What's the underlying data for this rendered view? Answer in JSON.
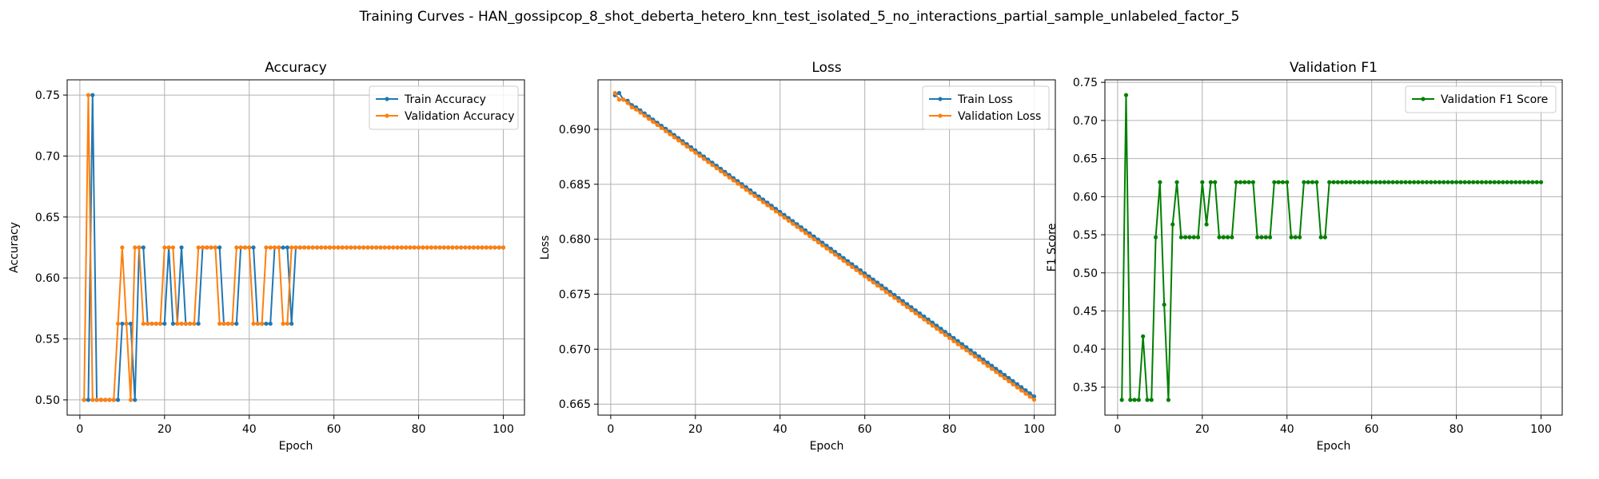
{
  "figure_title": "Training Curves - HAN_gossipcop_8_shot_deberta_hetero_knn_test_isolated_5_no_interactions_partial_sample_unlabeled_factor_5",
  "chart_data": [
    {
      "type": "line",
      "title": "Accuracy",
      "xlabel": "Epoch",
      "ylabel": "Accuracy",
      "xlim": [
        -3,
        105
      ],
      "ylim": [
        0.4875,
        0.7625
      ],
      "xticks": [
        0,
        20,
        40,
        60,
        80,
        100
      ],
      "yticks": [
        0.5,
        0.55,
        0.6,
        0.65,
        0.7,
        0.75
      ],
      "ytick_labels": [
        "0.50",
        "0.55",
        "0.60",
        "0.65",
        "0.70",
        "0.75"
      ],
      "grid": true,
      "legend_position": "top-right",
      "series": [
        {
          "name": "Train Accuracy",
          "color": "#1f77b4",
          "x": [
            1,
            2,
            3,
            4,
            5,
            6,
            7,
            8,
            9,
            10,
            11,
            12,
            13,
            14,
            15,
            16,
            17,
            18,
            19,
            20,
            21,
            22,
            23,
            24,
            25,
            26,
            27,
            28,
            29,
            30,
            31,
            32,
            33,
            34,
            35,
            36,
            37,
            38,
            39,
            40,
            41,
            42,
            43,
            44,
            45,
            46,
            47,
            48,
            49,
            50
          ],
          "values": [
            0.5,
            0.5,
            0.75,
            0.5,
            0.5,
            0.5,
            0.5,
            0.5,
            0.5,
            0.5625,
            0.5625,
            0.5625,
            0.5,
            0.625,
            0.625,
            0.5625,
            0.5625,
            0.5625,
            0.5625,
            0.5625,
            0.625,
            0.5625,
            0.5625,
            0.625,
            0.5625,
            0.5625,
            0.5625,
            0.5625,
            0.625,
            0.625,
            0.625,
            0.625,
            0.625,
            0.5625,
            0.5625,
            0.5625,
            0.5625,
            0.625,
            0.625,
            0.625,
            0.625,
            0.5625,
            0.5625,
            0.5625,
            0.5625,
            0.625,
            0.625,
            0.625,
            0.625,
            0.5625
          ],
          "tail_from": 51,
          "tail_to": 100,
          "tail_value": 0.625
        },
        {
          "name": "Validation Accuracy",
          "color": "#ff7f0e",
          "x": [
            1,
            2,
            3,
            4,
            5,
            6,
            7,
            8,
            9,
            10,
            11,
            12,
            13,
            14,
            15,
            16,
            17,
            18,
            19,
            20,
            21,
            22,
            23,
            24,
            25,
            26,
            27,
            28,
            29,
            30,
            31,
            32,
            33,
            34,
            35,
            36,
            37,
            38,
            39,
            40,
            41,
            42,
            43,
            44,
            45,
            46,
            47,
            48,
            49,
            50
          ],
          "values": [
            0.5,
            0.75,
            0.5,
            0.5,
            0.5,
            0.5,
            0.5,
            0.5,
            0.5625,
            0.625,
            0.5625,
            0.5,
            0.625,
            0.625,
            0.5625,
            0.5625,
            0.5625,
            0.5625,
            0.5625,
            0.625,
            0.625,
            0.625,
            0.5625,
            0.5625,
            0.5625,
            0.5625,
            0.5625,
            0.625,
            0.625,
            0.625,
            0.625,
            0.625,
            0.5625,
            0.5625,
            0.5625,
            0.5625,
            0.625,
            0.625,
            0.625,
            0.625,
            0.5625,
            0.5625,
            0.5625,
            0.625,
            0.625,
            0.625,
            0.625,
            0.5625,
            0.5625,
            0.625
          ],
          "tail_from": 51,
          "tail_to": 100,
          "tail_value": 0.625
        }
      ]
    },
    {
      "type": "line",
      "title": "Loss",
      "xlabel": "Epoch",
      "ylabel": "Loss",
      "xlim": [
        -3,
        105
      ],
      "ylim": [
        0.664,
        0.6945
      ],
      "xticks": [
        0,
        20,
        40,
        60,
        80,
        100
      ],
      "yticks": [
        0.665,
        0.67,
        0.675,
        0.68,
        0.685,
        0.69
      ],
      "ytick_labels": [
        "0.665",
        "0.670",
        "0.675",
        "0.680",
        "0.685",
        "0.690"
      ],
      "grid": true,
      "legend_position": "top-right",
      "series": [
        {
          "name": "Train Loss",
          "color": "#1f77b4",
          "x_from": 1,
          "x_to": 100,
          "initial_values": [
            0.6931,
            0.6933,
            0.6927,
            0.6926,
            0.6922
          ],
          "start_from": 6,
          "start_value": 0.692,
          "end_value": 0.6657
        },
        {
          "name": "Validation Loss",
          "color": "#ff7f0e",
          "x_from": 1,
          "x_to": 100,
          "initial_values": [
            0.6933,
            0.6927,
            0.6927,
            0.6924,
            0.692
          ],
          "start_from": 6,
          "start_value": 0.6918,
          "end_value": 0.6654
        }
      ]
    },
    {
      "type": "line",
      "title": "Validation F1",
      "xlabel": "Epoch",
      "ylabel": "F1 Score",
      "xlim": [
        -3,
        105
      ],
      "ylim": [
        0.3133,
        0.7533
      ],
      "xticks": [
        0,
        20,
        40,
        60,
        80,
        100
      ],
      "yticks": [
        0.35,
        0.4,
        0.45,
        0.5,
        0.55,
        0.6,
        0.65,
        0.7,
        0.75
      ],
      "ytick_labels": [
        "0.35",
        "0.40",
        "0.45",
        "0.50",
        "0.55",
        "0.60",
        "0.65",
        "0.70",
        "0.75"
      ],
      "grid": true,
      "legend_position": "top-right",
      "series": [
        {
          "name": "Validation F1 Score",
          "color": "#008000",
          "x": [
            1,
            2,
            3,
            4,
            5,
            6,
            7,
            8,
            9,
            10,
            11,
            12,
            13,
            14,
            15,
            16,
            17,
            18,
            19,
            20,
            21,
            22,
            23,
            24,
            25,
            26,
            27,
            28,
            29,
            30,
            31,
            32,
            33,
            34,
            35,
            36,
            37,
            38,
            39,
            40,
            41,
            42,
            43,
            44,
            45,
            46,
            47,
            48,
            49,
            50
          ],
          "values": [
            0.3333,
            0.7333,
            0.3333,
            0.3333,
            0.3333,
            0.4167,
            0.3333,
            0.3333,
            0.5467,
            0.619,
            0.4583,
            0.3333,
            0.5636,
            0.619,
            0.5467,
            0.5467,
            0.5467,
            0.5467,
            0.5467,
            0.619,
            0.5636,
            0.619,
            0.619,
            0.5467,
            0.5467,
            0.5467,
            0.5467,
            0.619,
            0.619,
            0.619,
            0.619,
            0.619,
            0.5467,
            0.5467,
            0.5467,
            0.5467,
            0.619,
            0.619,
            0.619,
            0.619,
            0.5467,
            0.5467,
            0.5467,
            0.619,
            0.619,
            0.619,
            0.619,
            0.5467,
            0.5467,
            0.619
          ],
          "tail_from": 51,
          "tail_to": 100,
          "tail_value": 0.619
        }
      ]
    }
  ]
}
